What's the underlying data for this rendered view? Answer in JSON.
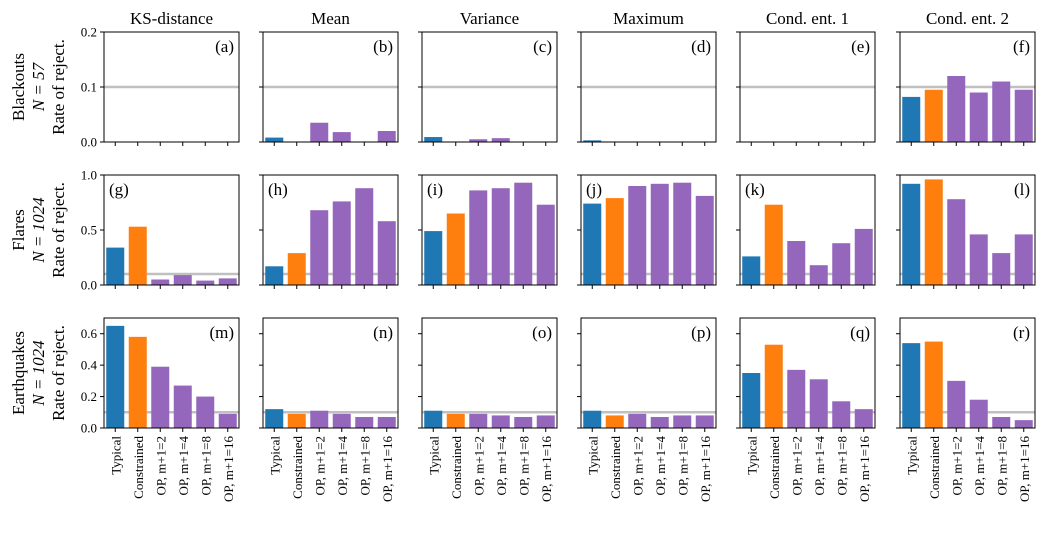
{
  "chart_data": {
    "type": "bar",
    "columns": [
      "KS-distance",
      "Mean",
      "Variance",
      "Maximum",
      "Cond. ent. 1",
      "Cond. ent. 2"
    ],
    "rows": [
      {
        "line1": "Blackouts",
        "line2": "N = 57",
        "ylabel": "Rate of reject.",
        "ylim": [
          0,
          0.2
        ],
        "yticks": [
          "0.0",
          "0.1",
          "0.2"
        ]
      },
      {
        "line1": "Flares",
        "line2": "N = 1024",
        "ylabel": "Rate of reject.",
        "ylim": [
          0,
          1.0
        ],
        "yticks": [
          "0.0",
          "0.5",
          "1.0"
        ]
      },
      {
        "line1": "Earthquakes",
        "line2": "N = 1024",
        "ylabel": "Rate of reject.",
        "ylim": [
          0,
          0.7
        ],
        "yticks": [
          "0.0",
          "0.2",
          "0.4",
          "0.6"
        ]
      }
    ],
    "categories": [
      "Typical",
      "Constrained",
      "OP, m+1=2",
      "OP, m+1=4",
      "OP, m+1=8",
      "OP, m+1=16"
    ],
    "category_colors": [
      "#1f77b4",
      "#ff7f0e",
      "#9467bd",
      "#9467bd",
      "#9467bd",
      "#9467bd"
    ],
    "reference_line": 0.1,
    "reference_color": "#c0c0c0",
    "panel_labels": [
      "(a)",
      "(b)",
      "(c)",
      "(d)",
      "(e)",
      "(f)",
      "(g)",
      "(h)",
      "(i)",
      "(j)",
      "(k)",
      "(l)",
      "(m)",
      "(n)",
      "(o)",
      "(p)",
      "(q)",
      "(r)"
    ],
    "values": [
      [
        [
          0.0,
          0.0,
          0.0,
          0.0,
          0.0,
          0.0
        ],
        [
          0.008,
          0.0,
          0.035,
          0.018,
          0.0,
          0.02
        ],
        [
          0.009,
          0.0,
          0.005,
          0.007,
          0.0,
          0.0
        ],
        [
          0.003,
          0.0,
          0.0,
          0.0,
          0.0,
          0.0
        ],
        [
          0.0,
          0.0,
          0.0,
          0.0,
          0.0,
          0.0
        ],
        [
          0.082,
          0.095,
          0.12,
          0.09,
          0.11,
          0.095
        ]
      ],
      [
        [
          0.34,
          0.53,
          0.05,
          0.09,
          0.04,
          0.06
        ],
        [
          0.17,
          0.29,
          0.68,
          0.76,
          0.88,
          0.58
        ],
        [
          0.49,
          0.65,
          0.86,
          0.88,
          0.93,
          0.73
        ],
        [
          0.74,
          0.79,
          0.9,
          0.92,
          0.93,
          0.81
        ],
        [
          0.26,
          0.73,
          0.4,
          0.18,
          0.38,
          0.51
        ],
        [
          0.92,
          0.96,
          0.78,
          0.46,
          0.29,
          0.46
        ]
      ],
      [
        [
          0.65,
          0.58,
          0.39,
          0.27,
          0.2,
          0.09
        ],
        [
          0.12,
          0.09,
          0.11,
          0.09,
          0.07,
          0.07
        ],
        [
          0.11,
          0.09,
          0.09,
          0.08,
          0.07,
          0.08
        ],
        [
          0.11,
          0.08,
          0.09,
          0.07,
          0.08,
          0.08
        ],
        [
          0.35,
          0.53,
          0.37,
          0.31,
          0.17,
          0.12
        ],
        [
          0.54,
          0.55,
          0.3,
          0.18,
          0.07,
          0.05
        ]
      ]
    ]
  }
}
